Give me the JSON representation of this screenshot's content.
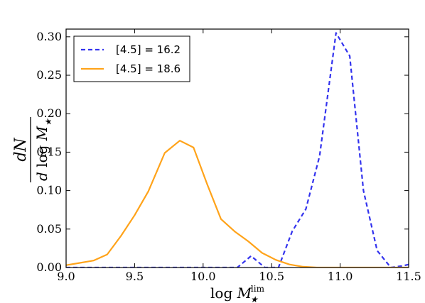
{
  "chart_data": {
    "type": "line",
    "xlim": [
      9.0,
      11.5
    ],
    "ylim": [
      0.0,
      0.31
    ],
    "x_ticks": [
      9.0,
      9.5,
      10.0,
      10.5,
      11.0,
      11.5
    ],
    "y_ticks": [
      0.0,
      0.05,
      0.1,
      0.15,
      0.2,
      0.25,
      0.3
    ],
    "x_tick_labels": [
      "9.0",
      "9.5",
      "10.0",
      "10.5",
      "11.0",
      "11.5"
    ],
    "y_tick_labels": [
      "0.00",
      "0.05",
      "0.10",
      "0.15",
      "0.20",
      "0.25",
      "0.30"
    ],
    "xlabel": "log M★lim",
    "ylabel": "dN / d log M★",
    "grid": false,
    "legend_position": "top-left",
    "series": [
      {
        "name": "[4.5] = 16.2",
        "color": "#3333ee",
        "style": "dashed",
        "x": [
          9.0,
          9.1,
          9.2,
          9.3,
          9.4,
          9.5,
          9.6,
          9.7,
          9.8,
          9.9,
          10.0,
          10.1,
          10.2,
          10.25,
          10.35,
          10.45,
          10.55,
          10.65,
          10.75,
          10.85,
          10.97,
          11.07,
          11.17,
          11.27,
          11.37,
          11.45,
          11.5
        ],
        "y": [
          0.0,
          0.0,
          0.0,
          0.0,
          0.0,
          0.0,
          0.0,
          0.0,
          0.0,
          0.0,
          0.0,
          0.0,
          0.0,
          0.0,
          0.015,
          0.0,
          0.0,
          0.047,
          0.076,
          0.145,
          0.305,
          0.275,
          0.1,
          0.022,
          0.0,
          0.002,
          0.004
        ]
      },
      {
        "name": "[4.5] = 18.6",
        "color": "#ffa31a",
        "style": "solid",
        "x": [
          9.0,
          9.1,
          9.2,
          9.3,
          9.4,
          9.5,
          9.6,
          9.72,
          9.83,
          9.93,
          10.03,
          10.13,
          10.23,
          10.33,
          10.43,
          10.53,
          10.63,
          10.73,
          10.83,
          10.93,
          11.03,
          11.13,
          11.23,
          11.33,
          11.43,
          11.5
        ],
        "y": [
          0.003,
          0.006,
          0.009,
          0.017,
          0.041,
          0.068,
          0.099,
          0.149,
          0.165,
          0.156,
          0.108,
          0.063,
          0.047,
          0.034,
          0.019,
          0.01,
          0.004,
          0.001,
          0.0,
          0.0,
          0.0,
          0.0,
          0.0,
          0.0,
          0.0,
          0.0
        ]
      }
    ]
  }
}
